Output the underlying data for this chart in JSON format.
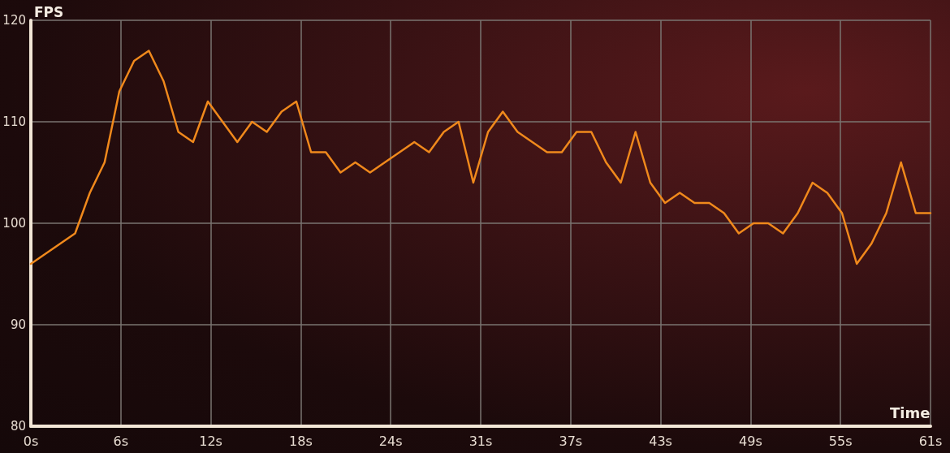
{
  "chart_data": {
    "type": "line",
    "xlabel": "Time",
    "ylabel": "FPS",
    "x": [
      0,
      1,
      2,
      3,
      4,
      5,
      6,
      7,
      8,
      9,
      10,
      11,
      12,
      13,
      14,
      15,
      16,
      17,
      18,
      19,
      20,
      21,
      22,
      23,
      24,
      25,
      26,
      27,
      28,
      29,
      30,
      31,
      32,
      33,
      34,
      35,
      36,
      37,
      38,
      39,
      40,
      41,
      42,
      43,
      44,
      45,
      46,
      47,
      48,
      49,
      50,
      51,
      52,
      53,
      54,
      55,
      56,
      57,
      58,
      59,
      60,
      61
    ],
    "series": [
      {
        "color": "#f0891c",
        "values": [
          96,
          97,
          98,
          99,
          103,
          106,
          113,
          116,
          117,
          114,
          109,
          108,
          112,
          110,
          108,
          110,
          109,
          111,
          112,
          107,
          107,
          105,
          106,
          105,
          106,
          107,
          108,
          107,
          109,
          110,
          104,
          109,
          111,
          109,
          108,
          107,
          107,
          109,
          109,
          106,
          104,
          109,
          104,
          102,
          103,
          102,
          102,
          101,
          99,
          100,
          100,
          99,
          101,
          104,
          103,
          101,
          96,
          98,
          101,
          106,
          101,
          101
        ]
      }
    ],
    "xlim": [
      0,
      61
    ],
    "xticks": [
      {
        "value": 0,
        "label": "0s"
      },
      {
        "value": 6.1,
        "label": "6s"
      },
      {
        "value": 12.2,
        "label": "12s"
      },
      {
        "value": 18.3,
        "label": "18s"
      },
      {
        "value": 24.4,
        "label": "24s"
      },
      {
        "value": 30.5,
        "label": "31s"
      },
      {
        "value": 36.6,
        "label": "37s"
      },
      {
        "value": 42.7,
        "label": "43s"
      },
      {
        "value": 48.8,
        "label": "49s"
      },
      {
        "value": 54.9,
        "label": "55s"
      },
      {
        "value": 61,
        "label": "61s"
      }
    ],
    "ylim": [
      80,
      120
    ],
    "yticks": [
      80,
      90,
      100,
      110,
      120
    ],
    "grid": true,
    "marker": "none",
    "line_style": "solid"
  }
}
